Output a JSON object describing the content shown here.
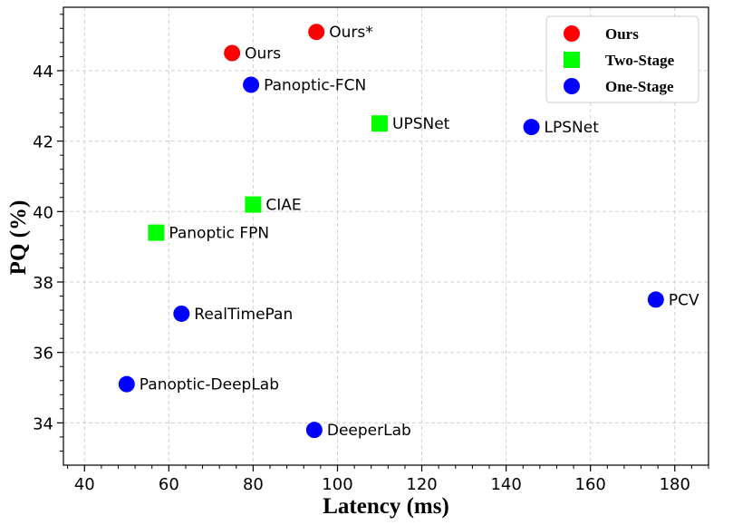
{
  "chart_data": {
    "type": "scatter",
    "title": "",
    "xlabel": "Latency (ms)",
    "ylabel": "PQ (%)",
    "xlim": [
      35,
      188
    ],
    "ylim": [
      32.8,
      45.8
    ],
    "xticks": [
      40,
      60,
      80,
      100,
      120,
      140,
      160,
      180
    ],
    "yticks": [
      34,
      36,
      38,
      40,
      42,
      44
    ],
    "grid": true,
    "legend_position": "top-right",
    "series": [
      {
        "name": "Ours",
        "color": "#ff0000",
        "marker": "circle",
        "points": [
          {
            "label": "Ours*",
            "x": 95,
            "y": 45.1
          },
          {
            "label": "Ours",
            "x": 75,
            "y": 44.5
          }
        ]
      },
      {
        "name": "Two-Stage",
        "color": "#00ff00",
        "marker": "square",
        "points": [
          {
            "label": "UPSNet",
            "x": 110,
            "y": 42.5
          },
          {
            "label": "CIAE",
            "x": 80,
            "y": 40.2
          },
          {
            "label": "Panoptic FPN",
            "x": 57,
            "y": 39.4
          }
        ]
      },
      {
        "name": "One-Stage",
        "color": "#0000ff",
        "marker": "circle",
        "points": [
          {
            "label": "Panoptic-FCN",
            "x": 79.5,
            "y": 43.6
          },
          {
            "label": "LPSNet",
            "x": 146,
            "y": 42.4
          },
          {
            "label": "PCV",
            "x": 175.5,
            "y": 37.5
          },
          {
            "label": "RealTimePan",
            "x": 63,
            "y": 37.1
          },
          {
            "label": "Panoptic-DeepLab",
            "x": 50,
            "y": 35.1
          },
          {
            "label": "DeeperLab",
            "x": 94.5,
            "y": 33.8
          }
        ]
      }
    ]
  }
}
